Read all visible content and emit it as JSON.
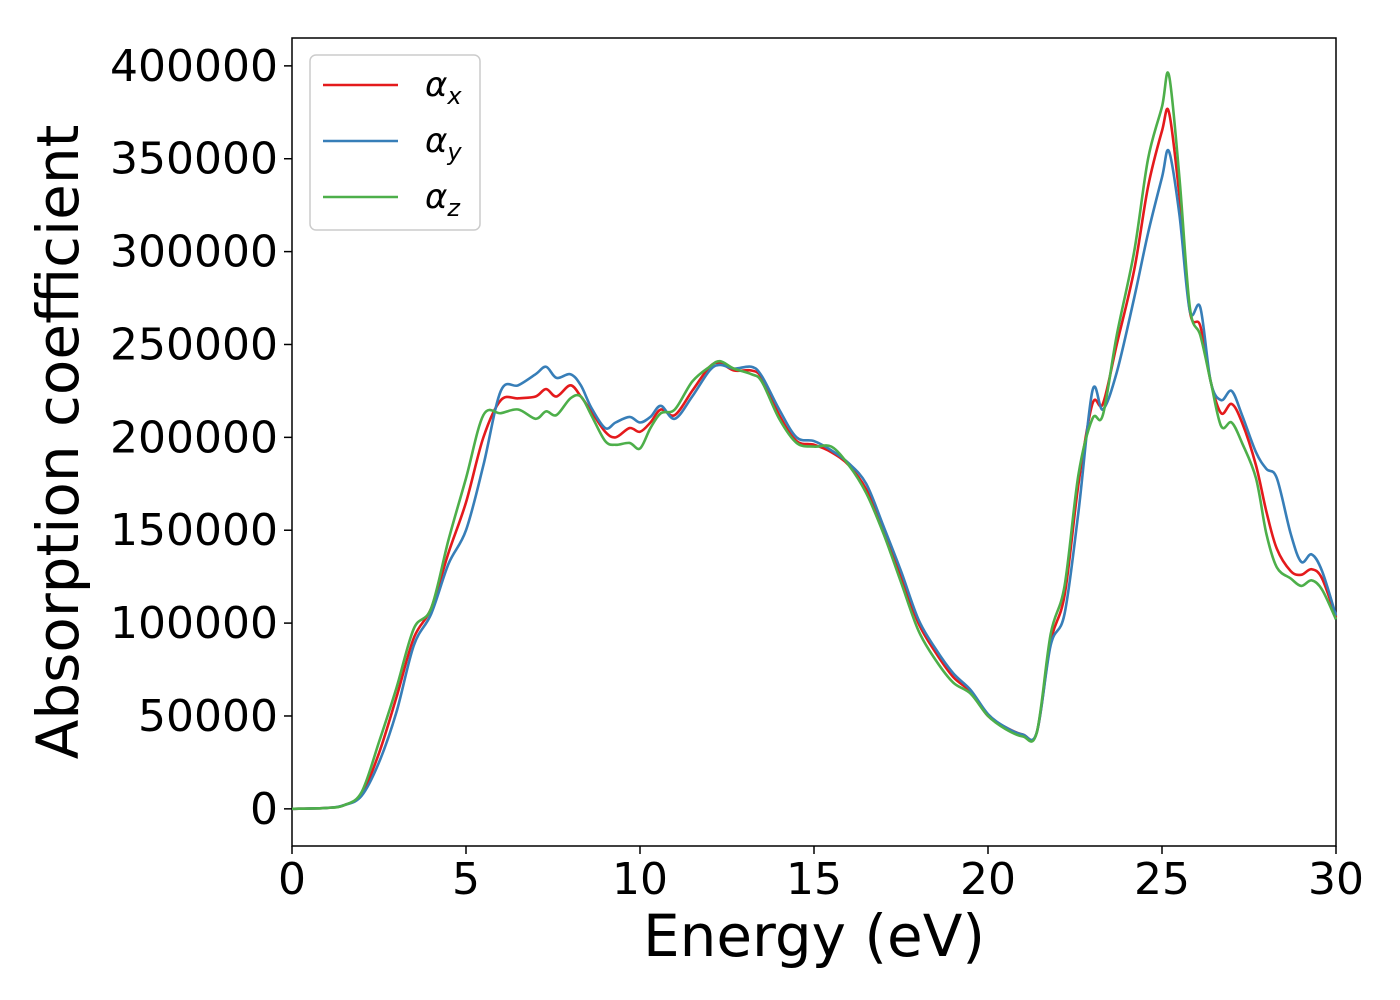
{
  "chart_data": {
    "type": "line",
    "xlabel": "Energy (eV)",
    "ylabel": "Absorption coefficient",
    "xlim": [
      0,
      30
    ],
    "ylim": [
      -20000,
      415000
    ],
    "xticks": [
      0,
      5,
      10,
      15,
      20,
      25,
      30
    ],
    "xtick_labels": [
      "0",
      "5",
      "10",
      "15",
      "20",
      "25",
      "30"
    ],
    "yticks": [
      0,
      50000,
      100000,
      150000,
      200000,
      250000,
      300000,
      350000,
      400000
    ],
    "ytick_labels": [
      "0",
      "50000",
      "100000",
      "150000",
      "200000",
      "250000",
      "300000",
      "350000",
      "400000"
    ],
    "grid": false,
    "legend": {
      "position": "top-left"
    },
    "series": [
      {
        "name": "α_x",
        "label_base": "α",
        "label_sub": "x",
        "color": "#e41a1c",
        "x": [
          0,
          1,
          1.5,
          2,
          2.5,
          3,
          3.5,
          4,
          4.5,
          5,
          5.5,
          6,
          6.5,
          7,
          7.3,
          7.6,
          8,
          8.3,
          8.6,
          9,
          9.3,
          9.7,
          10,
          10.3,
          10.6,
          11,
          11.5,
          12,
          12.3,
          12.7,
          13.2,
          13.5,
          14,
          14.5,
          15,
          15.5,
          16,
          16.5,
          17,
          17.5,
          18,
          18.5,
          19,
          19.5,
          20,
          20.5,
          21,
          21.4,
          21.8,
          22.2,
          22.6,
          23,
          23.3,
          23.7,
          24.2,
          24.6,
          25,
          25.2,
          25.5,
          25.8,
          26.1,
          26.4,
          26.7,
          27,
          27.3,
          27.7,
          28,
          28.3,
          28.7,
          29,
          29.3,
          29.6,
          30
        ],
        "y": [
          0,
          500,
          2000,
          8000,
          30000,
          60000,
          92000,
          108000,
          138000,
          165000,
          200000,
          220000,
          221000,
          222000,
          226000,
          222000,
          228000,
          222000,
          214000,
          203000,
          200000,
          205000,
          203000,
          208000,
          215000,
          212000,
          225000,
          238000,
          240000,
          236000,
          236000,
          232000,
          212000,
          198000,
          196000,
          192000,
          185000,
          172000,
          150000,
          125000,
          100000,
          84000,
          71000,
          63000,
          50000,
          44000,
          40000,
          41000,
          90000,
          115000,
          175000,
          218000,
          218000,
          250000,
          290000,
          335000,
          365000,
          375000,
          330000,
          268000,
          260000,
          230000,
          213000,
          218000,
          208000,
          185000,
          160000,
          140000,
          128000,
          126000,
          129000,
          124000,
          103000
        ]
      },
      {
        "name": "α_y",
        "label_base": "α",
        "label_sub": "y",
        "color": "#377eb8",
        "x": [
          0,
          1,
          1.5,
          2,
          2.5,
          3,
          3.5,
          4,
          4.5,
          5,
          5.5,
          6,
          6.5,
          7,
          7.3,
          7.6,
          8,
          8.3,
          8.6,
          9,
          9.3,
          9.7,
          10,
          10.3,
          10.6,
          11,
          11.5,
          12,
          12.3,
          12.7,
          13.2,
          13.5,
          14,
          14.5,
          15,
          15.5,
          16,
          16.5,
          17,
          17.5,
          18,
          18.5,
          19,
          19.5,
          20,
          20.5,
          21,
          21.4,
          21.8,
          22.2,
          22.6,
          23,
          23.3,
          23.7,
          24.2,
          24.6,
          25,
          25.2,
          25.5,
          25.8,
          26.1,
          26.4,
          26.7,
          27,
          27.3,
          27.7,
          28,
          28.3,
          28.7,
          29,
          29.3,
          29.6,
          30
        ],
        "y": [
          0,
          500,
          2000,
          7000,
          25000,
          52000,
          88000,
          105000,
          132000,
          150000,
          185000,
          225000,
          228000,
          234000,
          238000,
          232000,
          234000,
          228000,
          216000,
          205000,
          208000,
          211000,
          208000,
          211000,
          217000,
          210000,
          222000,
          236000,
          239000,
          237000,
          238000,
          233000,
          215000,
          200000,
          198000,
          193000,
          186000,
          175000,
          152000,
          128000,
          102000,
          86000,
          73000,
          64000,
          51000,
          44000,
          40000,
          41000,
          88000,
          105000,
          160000,
          225000,
          215000,
          235000,
          275000,
          310000,
          340000,
          354000,
          320000,
          268000,
          270000,
          230000,
          220000,
          225000,
          212000,
          192000,
          183000,
          178000,
          148000,
          133000,
          137000,
          128000,
          104000
        ]
      },
      {
        "name": "α_z",
        "label_base": "α",
        "label_sub": "z",
        "color": "#4daf4a",
        "x": [
          0,
          1,
          1.5,
          2,
          2.5,
          3,
          3.5,
          4,
          4.5,
          5,
          5.5,
          6,
          6.5,
          7,
          7.3,
          7.6,
          8,
          8.3,
          8.6,
          9,
          9.3,
          9.7,
          10,
          10.3,
          10.6,
          11,
          11.5,
          12,
          12.3,
          12.7,
          13.2,
          13.5,
          14,
          14.5,
          15,
          15.5,
          16,
          16.5,
          17,
          17.5,
          18,
          18.5,
          19,
          19.5,
          20,
          20.5,
          21,
          21.4,
          21.8,
          22.2,
          22.6,
          23,
          23.3,
          23.7,
          24.2,
          24.6,
          25,
          25.2,
          25.5,
          25.8,
          26.1,
          26.4,
          26.7,
          27,
          27.3,
          27.7,
          28,
          28.3,
          28.7,
          29,
          29.3,
          29.6,
          30
        ],
        "y": [
          0,
          500,
          2000,
          9000,
          36000,
          65000,
          97000,
          108000,
          145000,
          178000,
          212000,
          213000,
          215000,
          210000,
          214000,
          212000,
          221000,
          222000,
          212000,
          198000,
          196000,
          197000,
          194000,
          205000,
          213000,
          215000,
          230000,
          238000,
          241000,
          237000,
          234000,
          230000,
          210000,
          197000,
          195000,
          195000,
          185000,
          170000,
          148000,
          122000,
          96000,
          80000,
          68000,
          62000,
          50000,
          43000,
          39000,
          41000,
          94000,
          120000,
          180000,
          210000,
          212000,
          255000,
          300000,
          350000,
          378000,
          395000,
          340000,
          270000,
          255000,
          230000,
          206000,
          208000,
          197000,
          178000,
          148000,
          130000,
          124000,
          120000,
          123000,
          118000,
          102000
        ]
      }
    ]
  }
}
